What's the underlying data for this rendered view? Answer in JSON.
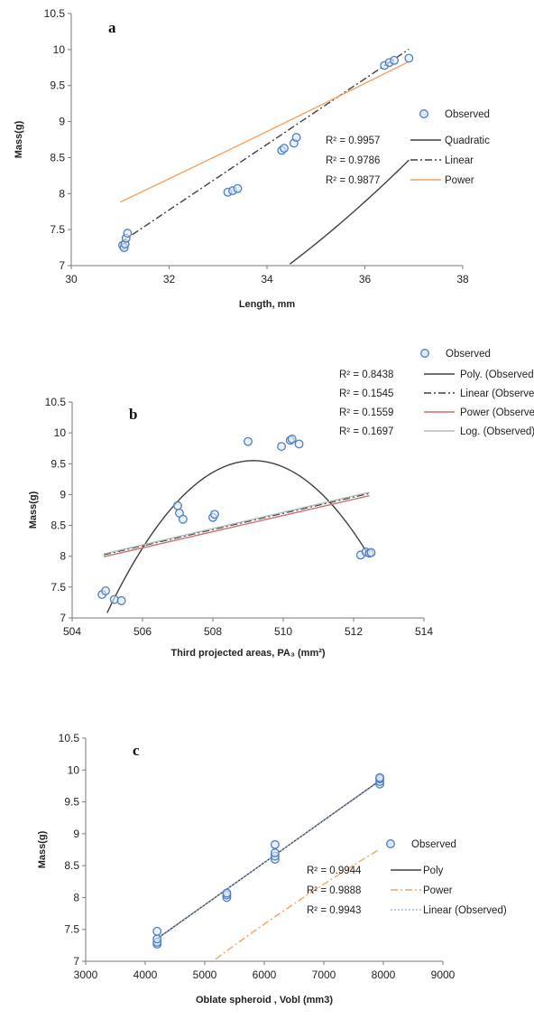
{
  "chart_data": [
    {
      "type": "scatter",
      "panel_label": "a",
      "xlabel": "Length, mm",
      "ylabel": "Mass(g)",
      "xlim": [
        30,
        38
      ],
      "ylim": [
        7,
        10.5
      ],
      "xticks": [
        "30",
        "32",
        "34",
        "36",
        "38"
      ],
      "yticks": [
        "7",
        "7.5",
        "8",
        "8.5",
        "9",
        "9.5",
        "10",
        "10.5"
      ],
      "points": [
        [
          31.05,
          7.28
        ],
        [
          31.08,
          7.25
        ],
        [
          31.1,
          7.3
        ],
        [
          31.12,
          7.38
        ],
        [
          31.15,
          7.45
        ],
        [
          33.2,
          8.02
        ],
        [
          33.3,
          8.04
        ],
        [
          33.4,
          8.07
        ],
        [
          34.3,
          8.6
        ],
        [
          34.35,
          8.63
        ],
        [
          34.55,
          8.7
        ],
        [
          34.6,
          8.78
        ],
        [
          36.4,
          9.78
        ],
        [
          36.5,
          9.82
        ],
        [
          36.6,
          9.85
        ],
        [
          36.9,
          9.88
        ]
      ],
      "legend": [
        {
          "r2": "R² = 0.9957",
          "name": "Quadratic",
          "color": "#404040",
          "style": "solid"
        },
        {
          "r2": "R² = 0.9786",
          "name": "Linear",
          "color": "#404040",
          "style": "dashdot"
        },
        {
          "r2": "R² = 0.9877",
          "name": "Power",
          "color": "#f4a460",
          "style": "solid"
        }
      ],
      "observed_label": "Observed",
      "fits": [
        {
          "style": "quadratic",
          "coef": [
            0.03162,
            -1.6634,
            26.79
          ],
          "x": [
            31,
            36.9
          ],
          "color": "#404040"
        },
        {
          "style": "linear",
          "coef": [
            0.4554,
            -6.8
          ],
          "x": [
            31,
            36.9
          ],
          "color": "#404040"
        },
        {
          "style": "power",
          "coef": [
            0.1006,
            1.27
          ],
          "x": [
            31,
            36.9
          ],
          "color": "#f4a460"
        }
      ]
    },
    {
      "type": "scatter",
      "panel_label": "b",
      "xlabel": "Third projected areas, PA₃ (mm²)",
      "ylabel": "Mass(g)",
      "xlim": [
        504,
        514
      ],
      "ylim": [
        7,
        10.5
      ],
      "xticks": [
        "504",
        "506",
        "508",
        "510",
        "512",
        "514"
      ],
      "yticks": [
        "7",
        "7.5",
        "8",
        "8.5",
        "9",
        "9.5",
        "10",
        "10.5"
      ],
      "points": [
        [
          504.85,
          7.38
        ],
        [
          504.95,
          7.44
        ],
        [
          505.2,
          7.3
        ],
        [
          505.4,
          7.28
        ],
        [
          507,
          8.82
        ],
        [
          507.05,
          8.7
        ],
        [
          507.15,
          8.6
        ],
        [
          508,
          8.63
        ],
        [
          508.05,
          8.68
        ],
        [
          509,
          9.86
        ],
        [
          509.95,
          9.78
        ],
        [
          510.2,
          9.88
        ],
        [
          510.25,
          9.9
        ],
        [
          510.45,
          9.82
        ],
        [
          512.2,
          8.02
        ],
        [
          512.35,
          8.07
        ],
        [
          512.45,
          8.05
        ],
        [
          512.5,
          8.06
        ]
      ],
      "legend": [
        {
          "r2": "R² = 0.8438",
          "name": "Poly. (Observed)",
          "color": "#404040",
          "style": "solid"
        },
        {
          "r2": "R² = 0.1545",
          "name": "Linear (Observed)",
          "color": "#404040",
          "style": "dashdot"
        },
        {
          "r2": "R² = 0.1559",
          "name": "Power (Observed)",
          "color": "#c97070",
          "style": "solid"
        },
        {
          "r2": "R² = 0.1697",
          "name": "Log. (Observed)",
          "color": "#b8b8b8",
          "style": "solid"
        }
      ],
      "observed_label": "Observed",
      "fits": [
        {
          "style": "quadratic_vertex",
          "coef": [
            -0.1428,
            509.15,
            9.55
          ],
          "x": [
            504.9,
            512.45
          ],
          "color": "#404040"
        },
        {
          "style": "linear",
          "coef": [
            0.1317,
            -58.47
          ],
          "x": [
            504.9,
            512.45
          ],
          "color": "#404040"
        },
        {
          "style": "linear",
          "coef": [
            0.1311,
            -58.2
          ],
          "x": [
            504.9,
            512.45
          ],
          "color": "#c97070"
        },
        {
          "style": "linear",
          "coef": [
            0.1323,
            -58.76
          ],
          "x": [
            504.9,
            512.45
          ],
          "color": "#b8b8b8"
        }
      ]
    },
    {
      "type": "scatter",
      "panel_label": "c",
      "xlabel": "Oblate spheroid , Vobl (mm3)",
      "ylabel": "Mass(g)",
      "xlim": [
        3000,
        9000
      ],
      "ylim": [
        7,
        10.5
      ],
      "xticks": [
        "3000",
        "4000",
        "5000",
        "6000",
        "7000",
        "8000",
        "9000"
      ],
      "yticks": [
        "7",
        "7.5",
        "8",
        "8.5",
        "9",
        "9.5",
        "10",
        "10.5"
      ],
      "points": [
        [
          4200,
          7.27
        ],
        [
          4200,
          7.3
        ],
        [
          4200,
          7.35
        ],
        [
          4200,
          7.47
        ],
        [
          5370,
          8.0
        ],
        [
          5370,
          8.04
        ],
        [
          5370,
          8.07
        ],
        [
          6180,
          8.6
        ],
        [
          6180,
          8.65
        ],
        [
          6180,
          8.7
        ],
        [
          6180,
          8.83
        ],
        [
          7940,
          9.78
        ],
        [
          7940,
          9.82
        ],
        [
          7940,
          9.86
        ],
        [
          7940,
          9.88
        ]
      ],
      "legend": [
        {
          "r2": "R² = 0.9944",
          "name": "Poly",
          "color": "#404040",
          "style": "solid"
        },
        {
          "r2": "R² = 0.9888",
          "name": "Power",
          "color": "#f4a460",
          "style": "dashdot"
        },
        {
          "r2": "R² = 0.9943",
          "name": "Linear (Observed)",
          "color": "#9ab8e6",
          "style": "dotted"
        }
      ],
      "observed_label": "Observed",
      "fits": [
        {
          "style": "linear",
          "coef": [
            0.000663,
            4.57
          ],
          "x": [
            4200,
            7940
          ],
          "color": "#404040"
        },
        {
          "style": "power",
          "coef": [
            0.0863,
            0.5145
          ],
          "x": [
            4200,
            7940
          ],
          "color": "#f4a460"
        },
        {
          "style": "linear",
          "coef": [
            0.000658,
            4.6
          ],
          "x": [
            4200,
            7940
          ],
          "color": "#9ab8e6"
        }
      ]
    }
  ]
}
